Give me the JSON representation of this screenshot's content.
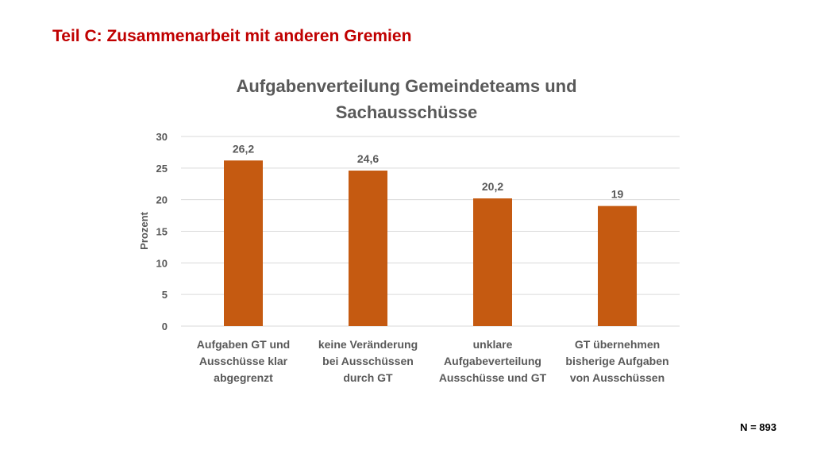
{
  "slide": {
    "title": "Teil C: Zusammenarbeit mit anderen Gremien",
    "footnote": "N = 893"
  },
  "colors": {
    "bar": "#c55a11",
    "grid": "#d9d9d9",
    "text": "#595959",
    "slide_title": "#c00000"
  },
  "chart_data": {
    "type": "bar",
    "title_lines": [
      "Aufgabenverteilung Gemeindeteams und",
      "Sachausschüsse"
    ],
    "ylabel": "Prozent",
    "xlabel": "",
    "ylim": [
      0,
      30
    ],
    "yticks": [
      0,
      5,
      10,
      15,
      20,
      25,
      30
    ],
    "grid": true,
    "legend": "none",
    "categories": [
      [
        "Aufgaben GT und",
        "Ausschüsse klar",
        "abgegrenzt"
      ],
      [
        "keine Veränderung",
        "bei Ausschüssen",
        "durch GT"
      ],
      [
        "unklare",
        "Aufgabeverteilung",
        "Ausschüsse und GT"
      ],
      [
        "GT übernehmen",
        "bisherige Aufgaben",
        "von Ausschüssen"
      ]
    ],
    "values": [
      26.2,
      24.6,
      20.2,
      19
    ],
    "data_labels": [
      "26,2",
      "24,6",
      "20,2",
      "19"
    ]
  }
}
